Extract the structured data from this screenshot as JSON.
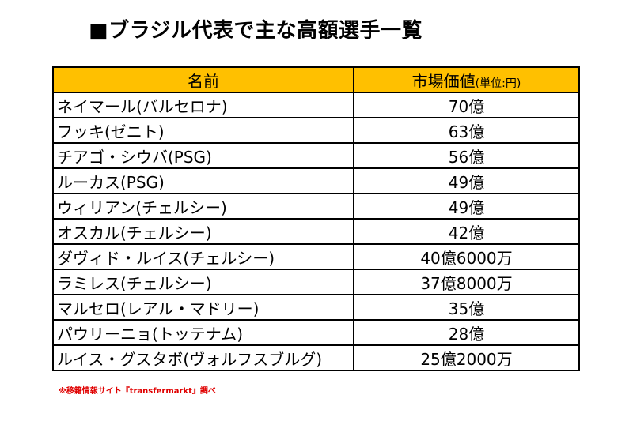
{
  "title": "■ブラジル代表で主な高額選手一覧",
  "table": {
    "header_name": "名前",
    "header_value": "市場価値",
    "header_unit": "(単位:円)",
    "rows": [
      {
        "name": "ネイマール(バルセロナ)",
        "value": "70億"
      },
      {
        "name": "フッキ(ゼニト)",
        "value": "63億"
      },
      {
        "name": "チアゴ・シウバ(PSG)",
        "value": "56億"
      },
      {
        "name": "ルーカス(PSG)",
        "value": "49億"
      },
      {
        "name": "ウィリアン(チェルシー)",
        "value": "49億"
      },
      {
        "name": "オスカル(チェルシー)",
        "value": "42億"
      },
      {
        "name": "ダヴィド・ルイス(チェルシー)",
        "value": "40億6000万"
      },
      {
        "name": "ラミレス(チェルシー)",
        "value": "37億8000万"
      },
      {
        "name": "マルセロ(レアル・マドリー)",
        "value": "35億"
      },
      {
        "name": "パウリーニョ(トッテナム)",
        "value": "28億"
      },
      {
        "name": "ルイス・グスタボ(ヴォルフスブルグ)",
        "value": "25億2000万"
      }
    ]
  },
  "footnote": "※移籍情報サイト『transfermarkt』調べ",
  "colors": {
    "header_bg": "#ffc000",
    "footnote": "#e00000"
  }
}
